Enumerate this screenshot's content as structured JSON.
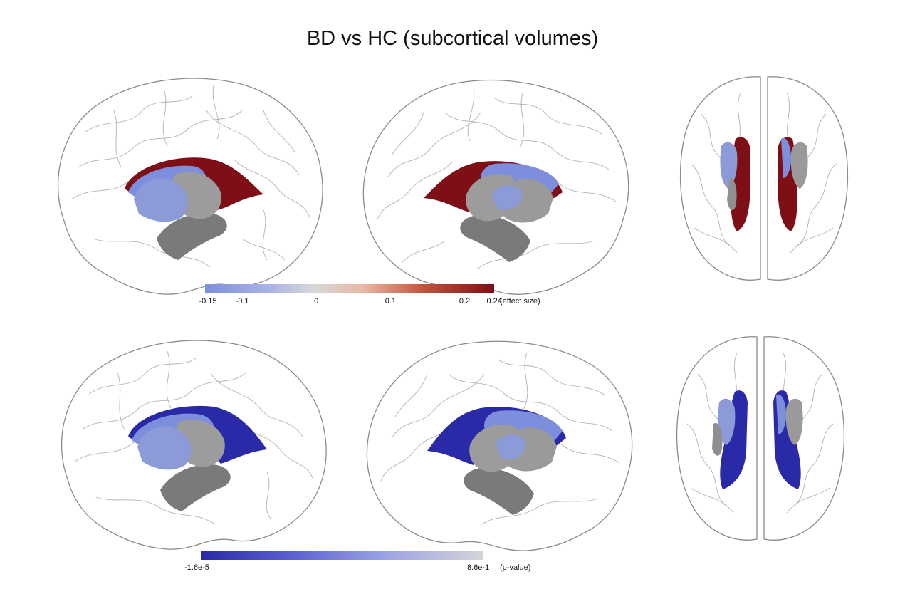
{
  "title": "BD vs HC (subcortical volumes)",
  "colors": {
    "neg_blue": "#7d8fdc",
    "pos_red": "#7e0f16",
    "mid": "#d8d8d8",
    "pval_low": "#2a2aa8",
    "pval_high": "#d4d4d8",
    "gray_struct": "#8f8f8f"
  },
  "effect_colorbar": {
    "min": -0.15,
    "max": 0.24,
    "ticks": [
      {
        "value": -0.15,
        "label": "-0.15"
      },
      {
        "value": -0.1,
        "label": "-0.1"
      },
      {
        "value": 0,
        "label": "0"
      },
      {
        "value": 0.1,
        "label": "0.1"
      },
      {
        "value": 0.2,
        "label": "0.2"
      },
      {
        "value": 0.24,
        "label": "0.24"
      }
    ],
    "unit": "(effect size)"
  },
  "pvalue_colorbar": {
    "ticks": [
      {
        "label": "-1.6e-5"
      },
      {
        "label": "8.6e-1"
      }
    ],
    "unit": "(p-value)"
  },
  "rows": [
    {
      "metric": "effect size",
      "views": [
        "left-lateral",
        "right-lateral",
        "superior"
      ]
    },
    {
      "metric": "p-value",
      "views": [
        "left-lateral",
        "right-lateral",
        "superior"
      ]
    }
  ]
}
